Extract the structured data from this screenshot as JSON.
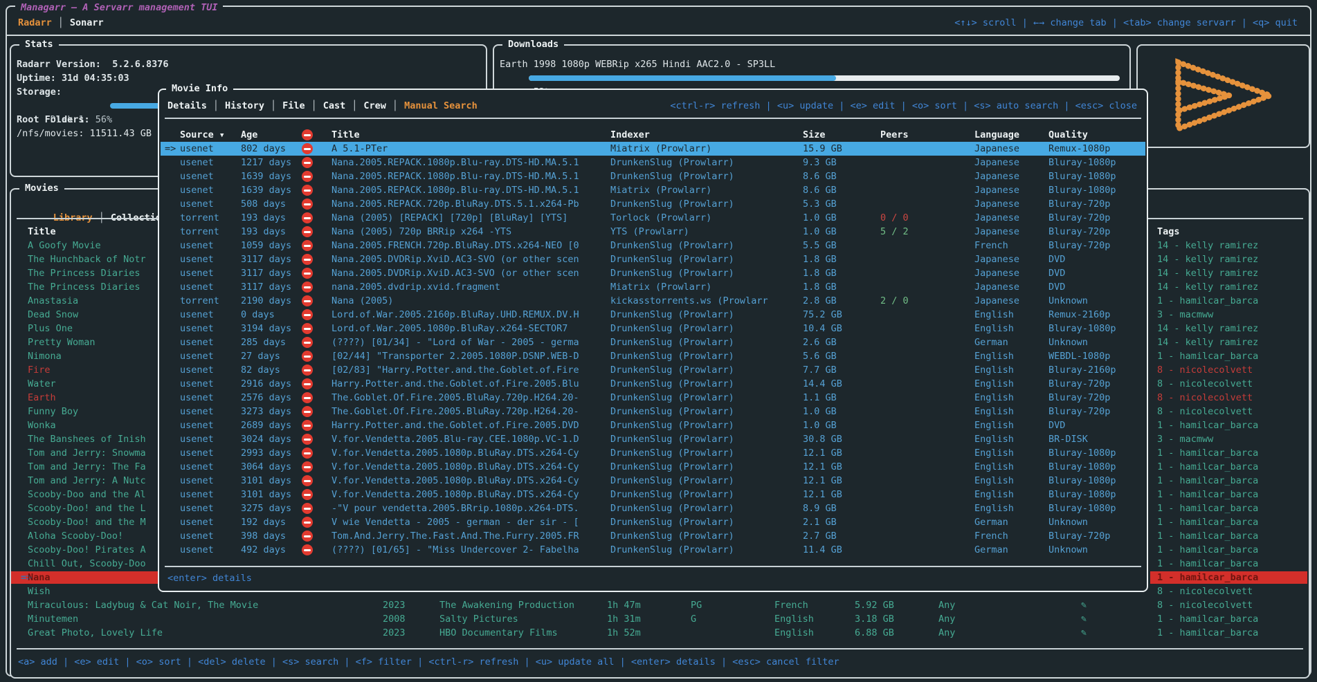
{
  "app": {
    "window_title": "Managarr – A Servarr management TUI",
    "tabs": [
      {
        "label": "Radarr",
        "active": true
      },
      {
        "label": "Sonarr",
        "active": false
      }
    ],
    "top_keybinds": "<↑↓> scroll | ←→ change tab | <tab> change servarr | <q> quit",
    "colors": {
      "background": "#1d272c",
      "accent_orange": "#e6923c",
      "accent_blue": "#4186d6",
      "table_blue": "#55a1d4",
      "selection_blue": "#47a9e3",
      "teal": "#46ab93",
      "red": "#c63c39",
      "red_selection": "#d32f2a",
      "magenta_title": "#b061b6"
    }
  },
  "stats": {
    "title": "Stats",
    "version_label": "Radarr Version:",
    "version_value": "5.2.6.8376",
    "uptime_label": "Uptime:",
    "uptime_value": "31d 04:35:03",
    "storage_label": "Storage:",
    "disk_label": "Disk 1: 56%",
    "disk_percent": 56,
    "root_folders_label": "Root Folders:",
    "root_folder_value": "/nfs/movies: 11511.43 GB"
  },
  "downloads": {
    "title": "Downloads",
    "item_title": "Earth 1998 1080p WEBRip x265 Hindi AAC2.0 - SP3LL",
    "percent_label": "52%",
    "percent": 52
  },
  "logo": {
    "name": "managarr-logo",
    "color": "#e6923c"
  },
  "movies": {
    "title": "Movies",
    "tabs": [
      {
        "label": "Library",
        "active": true
      },
      {
        "label": "Collections",
        "active": false
      }
    ],
    "columns": {
      "title": "Title",
      "tags": "Tags"
    },
    "edit_icon": "✎",
    "rows": [
      {
        "title": "A Goofy Movie",
        "tag": "14 - kelly ramirez"
      },
      {
        "title": "The Hunchback of Notr",
        "tag": "14 - kelly ramirez"
      },
      {
        "title": "The Princess Diaries",
        "tag": "14 - kelly ramirez"
      },
      {
        "title": "The Princess Diaries",
        "tag": "14 - kelly ramirez"
      },
      {
        "title": "Anastasia",
        "tag": "1 - hamilcar_barca"
      },
      {
        "title": "Dead Snow",
        "tag": "3 - macmww"
      },
      {
        "title": "Plus One",
        "tag": "14 - kelly ramirez"
      },
      {
        "title": "Pretty Woman",
        "tag": "14 - kelly ramirez"
      },
      {
        "title": "Nimona",
        "tag": "1 - hamilcar_barca"
      },
      {
        "title": "Fire",
        "red": true,
        "tag": "8 - nicolecolvett",
        "tag_red": true
      },
      {
        "title": "Water",
        "tag": "8 - nicolecolvett"
      },
      {
        "title": "Earth",
        "red": true,
        "tag": "8 - nicolecolvett",
        "tag_red": true
      },
      {
        "title": "Funny Boy",
        "tag": "8 - nicolecolvett"
      },
      {
        "title": "Wonka",
        "tag": "1 - hamilcar_barca"
      },
      {
        "title": "The Banshees of Inish",
        "tag": "3 - macmww"
      },
      {
        "title": "Tom and Jerry: Snowma",
        "tag": "1 - hamilcar_barca"
      },
      {
        "title": "Tom and Jerry: The Fa",
        "tag": "1 - hamilcar_barca"
      },
      {
        "title": "Tom and Jerry: A Nutc",
        "tag": "1 - hamilcar_barca"
      },
      {
        "title": "Scooby-Doo and the Al",
        "tag": "1 - hamilcar_barca"
      },
      {
        "title": "Scooby-Doo! and the L",
        "tag": "1 - hamilcar_barca"
      },
      {
        "title": "Scooby-Doo! and the M",
        "tag": "1 - hamilcar_barca"
      },
      {
        "title": "Aloha Scooby-Doo!",
        "tag": "1 - hamilcar_barca"
      },
      {
        "title": "Scooby-Doo! Pirates A",
        "tag": "1 - hamilcar_barca"
      },
      {
        "title": "Chill Out, Scooby-Doo",
        "tag": "1 - hamilcar_barca"
      },
      {
        "title": "Nana",
        "selected": true,
        "tag": "1 - hamilcar_barca"
      },
      {
        "title": "Wish",
        "tag": "8 - nicolecolvett"
      },
      {
        "title": "Miraculous: Ladybug & Cat Noir, The Movie",
        "year": "2023",
        "studio": "The Awakening Production",
        "runtime": "1h 47m",
        "cert": "PG",
        "language": "French",
        "size": "5.92 GB",
        "monitored": "Any",
        "edit": true,
        "tag": "8 - nicolecolvett"
      },
      {
        "title": "Minutemen",
        "year": "2008",
        "studio": "Salty Pictures",
        "runtime": "1h 31m",
        "cert": "G",
        "language": "English",
        "size": "3.18 GB",
        "monitored": "Any",
        "edit": true,
        "tag": "1 - hamilcar_barca"
      },
      {
        "title": "Great Photo, Lovely Life",
        "year": "2023",
        "studio": "HBO Documentary Films",
        "runtime": "1h 52m",
        "cert": "",
        "language": "English",
        "size": "6.88 GB",
        "monitored": "Any",
        "edit": true,
        "tag": "1 - hamilcar_barca"
      }
    ],
    "footer_keybinds": "<a> add | <e> edit | <o> sort | <del> delete | <s> search | <f> filter | <ctrl-r> refresh | <u> update all | <enter> details | <esc> cancel filter"
  },
  "movie_info": {
    "title": "Movie Info",
    "tabs": [
      {
        "label": "Details",
        "active": false
      },
      {
        "label": "History",
        "active": false
      },
      {
        "label": "File",
        "active": false
      },
      {
        "label": "Cast",
        "active": false
      },
      {
        "label": "Crew",
        "active": false
      },
      {
        "label": "Manual Search",
        "active": true
      }
    ],
    "keybinds": "<ctrl-r> refresh | <u> update | <e> edit | <o> sort | <s> auto search | <esc> close",
    "footer_keybinds": "<enter> details",
    "table": {
      "sort_icon": "▼",
      "headers": {
        "source": "Source",
        "age": "Age",
        "title": "Title",
        "indexer": "Indexer",
        "size": "Size",
        "peers": "Peers",
        "language": "Language",
        "quality": "Quality"
      },
      "rows": [
        {
          "selected": true,
          "source": "usenet",
          "age": "802 days",
          "title": "A 5.1-PTer",
          "indexer": "Miatrix (Prowlarr)",
          "size": "15.9 GB",
          "peers": "",
          "language": "Japanese",
          "quality": "Remux-1080p"
        },
        {
          "source": "usenet",
          "age": "1217 days",
          "title": "Nana.2005.REPACK.1080p.Blu-ray.DTS-HD.MA.5.1",
          "indexer": "DrunkenSlug (Prowlarr)",
          "size": "9.3 GB",
          "peers": "",
          "language": "Japanese",
          "quality": "Bluray-1080p"
        },
        {
          "source": "usenet",
          "age": "1639 days",
          "title": "Nana.2005.REPACK.1080p.Blu-ray.DTS-HD.MA.5.1",
          "indexer": "DrunkenSlug (Prowlarr)",
          "size": "8.6 GB",
          "peers": "",
          "language": "Japanese",
          "quality": "Bluray-1080p"
        },
        {
          "source": "usenet",
          "age": "1639 days",
          "title": "Nana.2005.REPACK.1080p.Blu-ray.DTS-HD.MA.5.1",
          "indexer": "Miatrix (Prowlarr)",
          "size": "8.6 GB",
          "peers": "",
          "language": "Japanese",
          "quality": "Bluray-1080p"
        },
        {
          "source": "usenet",
          "age": "508 days",
          "title": "Nana.2005.REPACK.720p.BluRay.DTS.5.1.x264-Pb",
          "indexer": "DrunkenSlug (Prowlarr)",
          "size": "5.3 GB",
          "peers": "",
          "language": "Japanese",
          "quality": "Bluray-720p"
        },
        {
          "source": "torrent",
          "age": "193 days",
          "title": "Nana (2005) [REPACK] [720p] [BluRay] [YTS]",
          "indexer": "Torlock (Prowlarr)",
          "size": "1.0 GB",
          "peers": "0 / 0",
          "peers_red": true,
          "language": "Japanese",
          "quality": "Bluray-720p"
        },
        {
          "source": "torrent",
          "age": "193 days",
          "title": "Nana (2005) 720p BRRip x264 -YTS",
          "indexer": "YTS (Prowlarr)",
          "size": "1.0 GB",
          "peers": "5 / 2",
          "language": "Japanese",
          "quality": "Bluray-720p"
        },
        {
          "source": "usenet",
          "age": "1059 days",
          "title": "Nana.2005.FRENCH.720p.BluRay.DTS.x264-NEO [0",
          "indexer": "DrunkenSlug (Prowlarr)",
          "size": "5.5 GB",
          "peers": "",
          "language": "French",
          "quality": "Bluray-720p"
        },
        {
          "source": "usenet",
          "age": "3117 days",
          "title": "Nana.2005.DVDRip.XviD.AC3-SVO (or other scen",
          "indexer": "DrunkenSlug (Prowlarr)",
          "size": "1.8 GB",
          "peers": "",
          "language": "Japanese",
          "quality": "DVD"
        },
        {
          "source": "usenet",
          "age": "3117 days",
          "title": "Nana.2005.DVDRip.XviD.AC3-SVO (or other scen",
          "indexer": "DrunkenSlug (Prowlarr)",
          "size": "1.8 GB",
          "peers": "",
          "language": "Japanese",
          "quality": "DVD"
        },
        {
          "source": "usenet",
          "age": "3117 days",
          "title": "nana.2005.dvdrip.xvid.fragment",
          "indexer": "Miatrix (Prowlarr)",
          "size": "1.8 GB",
          "peers": "",
          "language": "Japanese",
          "quality": "DVD"
        },
        {
          "source": "torrent",
          "age": "2190 days",
          "title": "Nana (2005)",
          "indexer": "kickasstorrents.ws (Prowlarr",
          "size": "2.8 GB",
          "peers": "2 / 0",
          "language": "Japanese",
          "quality": "Unknown"
        },
        {
          "source": "usenet",
          "age": "0 days",
          "title": "Lord.of.War.2005.2160p.BluRay.UHD.REMUX.DV.H",
          "indexer": "DrunkenSlug (Prowlarr)",
          "size": "75.2 GB",
          "peers": "",
          "language": "English",
          "quality": "Remux-2160p"
        },
        {
          "source": "usenet",
          "age": "3194 days",
          "title": "Lord.of.War.2005.1080p.BluRay.x264-SECTOR7",
          "indexer": "DrunkenSlug (Prowlarr)",
          "size": "10.4 GB",
          "peers": "",
          "language": "English",
          "quality": "Bluray-1080p"
        },
        {
          "source": "usenet",
          "age": "285 days",
          "title": "(????) [01/34] - \"Lord of War - 2005 - germa",
          "indexer": "DrunkenSlug (Prowlarr)",
          "size": "2.6 GB",
          "peers": "",
          "language": "German",
          "quality": "Unknown"
        },
        {
          "source": "usenet",
          "age": "27 days",
          "title": "[02/44] \"Transporter 2.2005.1080P.DSNP.WEB-D",
          "indexer": "DrunkenSlug (Prowlarr)",
          "size": "5.6 GB",
          "peers": "",
          "language": "English",
          "quality": "WEBDL-1080p"
        },
        {
          "source": "usenet",
          "age": "82 days",
          "title": "[02/83] \"Harry.Potter.and.the.Goblet.of.Fire",
          "indexer": "DrunkenSlug (Prowlarr)",
          "size": "7.7 GB",
          "peers": "",
          "language": "English",
          "quality": "Bluray-2160p"
        },
        {
          "source": "usenet",
          "age": "2916 days",
          "title": "Harry.Potter.and.the.Goblet.of.Fire.2005.Blu",
          "indexer": "DrunkenSlug (Prowlarr)",
          "size": "14.4 GB",
          "peers": "",
          "language": "English",
          "quality": "Bluray-720p"
        },
        {
          "source": "usenet",
          "age": "2576 days",
          "title": "The.Goblet.Of.Fire.2005.BluRay.720p.H264.20-",
          "indexer": "DrunkenSlug (Prowlarr)",
          "size": "1.1 GB",
          "peers": "",
          "language": "English",
          "quality": "Bluray-720p"
        },
        {
          "source": "usenet",
          "age": "3273 days",
          "title": "The.Goblet.Of.Fire.2005.BluRay.720p.H264.20-",
          "indexer": "DrunkenSlug (Prowlarr)",
          "size": "1.0 GB",
          "peers": "",
          "language": "English",
          "quality": "Bluray-720p"
        },
        {
          "source": "usenet",
          "age": "2689 days",
          "title": "Harry.Potter.and.the.Goblet.of.Fire.2005.DVD",
          "indexer": "DrunkenSlug (Prowlarr)",
          "size": "1.0 GB",
          "peers": "",
          "language": "English",
          "quality": "DVD"
        },
        {
          "source": "usenet",
          "age": "3024 days",
          "title": "V.for.Vendetta.2005.Blu-ray.CEE.1080p.VC-1.D",
          "indexer": "DrunkenSlug (Prowlarr)",
          "size": "30.8 GB",
          "peers": "",
          "language": "English",
          "quality": "BR-DISK"
        },
        {
          "source": "usenet",
          "age": "2993 days",
          "title": "V.for.Vendetta.2005.1080p.BluRay.DTS.x264-Cy",
          "indexer": "DrunkenSlug (Prowlarr)",
          "size": "12.1 GB",
          "peers": "",
          "language": "English",
          "quality": "Bluray-1080p"
        },
        {
          "source": "usenet",
          "age": "3064 days",
          "title": "V.for.Vendetta.2005.1080p.BluRay.DTS.x264-Cy",
          "indexer": "DrunkenSlug (Prowlarr)",
          "size": "12.1 GB",
          "peers": "",
          "language": "English",
          "quality": "Bluray-1080p"
        },
        {
          "source": "usenet",
          "age": "3101 days",
          "title": "V.for.Vendetta.2005.1080p.BluRay.DTS.x264-Cy",
          "indexer": "DrunkenSlug (Prowlarr)",
          "size": "12.1 GB",
          "peers": "",
          "language": "English",
          "quality": "Bluray-1080p"
        },
        {
          "source": "usenet",
          "age": "3101 days",
          "title": "V.for.Vendetta.2005.1080p.BluRay.DTS.x264-Cy",
          "indexer": "DrunkenSlug (Prowlarr)",
          "size": "12.1 GB",
          "peers": "",
          "language": "English",
          "quality": "Bluray-1080p"
        },
        {
          "source": "usenet",
          "age": "3275 days",
          "title": "-\"V pour vendetta.2005.BRrip.1080p.x264-DTS.",
          "indexer": "DrunkenSlug (Prowlarr)",
          "size": "8.9 GB",
          "peers": "",
          "language": "English",
          "quality": "Bluray-1080p"
        },
        {
          "source": "usenet",
          "age": "192 days",
          "title": "V wie Vendetta - 2005 - german - der sir - [",
          "indexer": "DrunkenSlug (Prowlarr)",
          "size": "2.1 GB",
          "peers": "",
          "language": "German",
          "quality": "Unknown"
        },
        {
          "source": "usenet",
          "age": "398 days",
          "title": "Tom.And.Jerry.The.Fast.And.The.Furry.2005.FR",
          "indexer": "DrunkenSlug (Prowlarr)",
          "size": "2.7 GB",
          "peers": "",
          "language": "French",
          "quality": "Bluray-720p"
        },
        {
          "source": "usenet",
          "age": "492 days",
          "title": "(????) [01/65] - \"Miss Undercover 2- Fabelha",
          "indexer": "DrunkenSlug (Prowlarr)",
          "size": "11.4 GB",
          "peers": "",
          "language": "German",
          "quality": "Unknown"
        }
      ]
    }
  }
}
